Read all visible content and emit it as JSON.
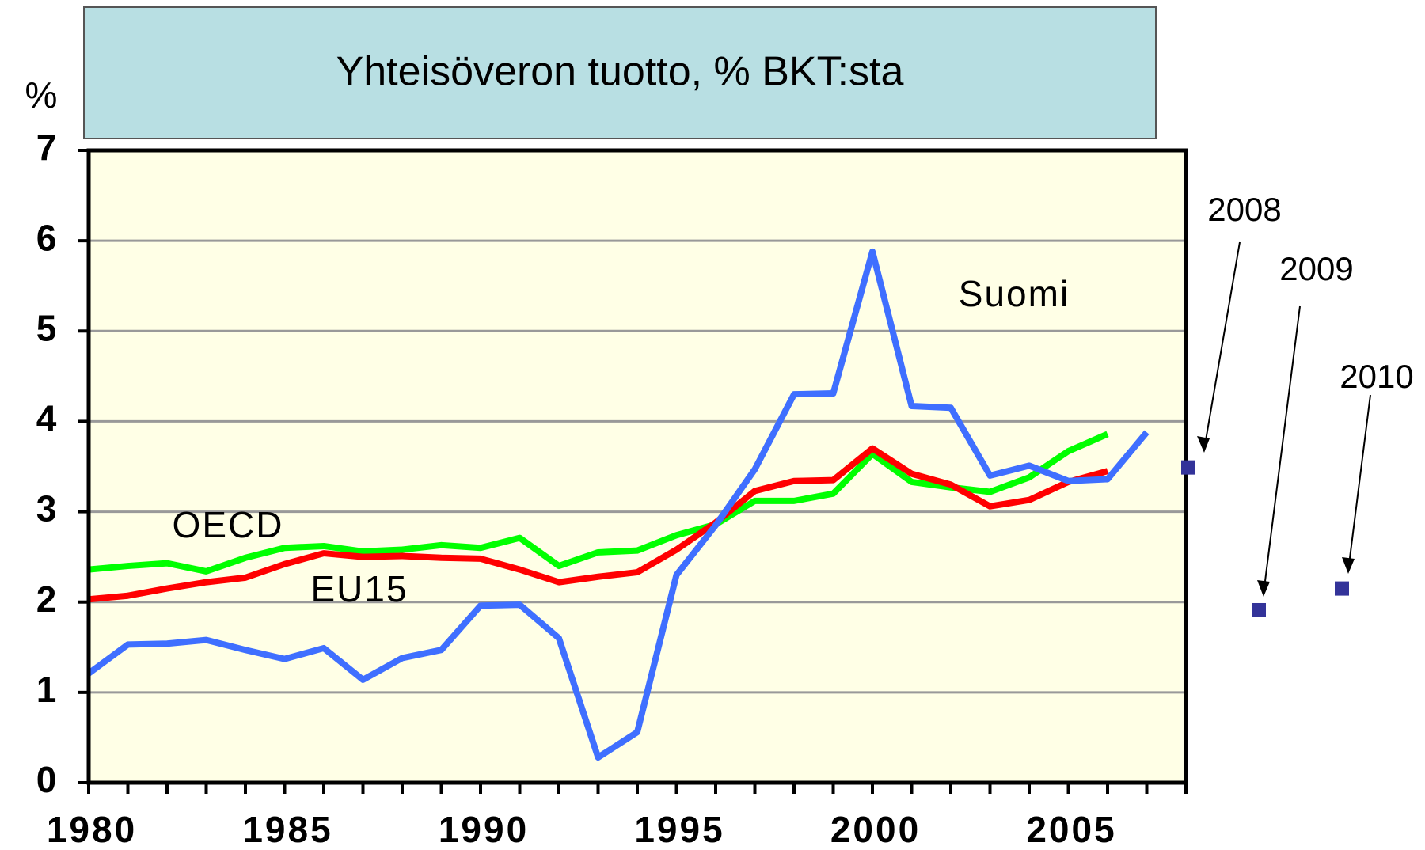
{
  "chart_data": {
    "type": "line",
    "title": "Yhteisöveron tuotto, % BKT:sta",
    "ylabel": "%",
    "x": [
      1980,
      1981,
      1982,
      1983,
      1984,
      1985,
      1986,
      1987,
      1988,
      1989,
      1990,
      1991,
      1992,
      1993,
      1994,
      1995,
      1996,
      1997,
      1998,
      1999,
      2000,
      2001,
      2002,
      2003,
      2004,
      2005,
      2006,
      2007
    ],
    "series": [
      {
        "name": "OECD",
        "color": "#00ff00",
        "values": [
          2.36,
          2.4,
          2.43,
          2.34,
          2.49,
          2.6,
          2.62,
          2.56,
          2.58,
          2.63,
          2.6,
          2.71,
          2.4,
          2.55,
          2.57,
          2.74,
          2.86,
          3.12,
          3.12,
          3.2,
          3.64,
          3.33,
          3.27,
          3.22,
          3.38,
          3.67,
          3.86,
          null
        ]
      },
      {
        "name": "EU15",
        "color": "#ff0000",
        "values": [
          2.03,
          2.07,
          2.15,
          2.22,
          2.27,
          2.42,
          2.54,
          2.5,
          2.51,
          2.49,
          2.48,
          2.36,
          2.22,
          2.28,
          2.33,
          2.58,
          2.88,
          3.23,
          3.34,
          3.35,
          3.7,
          3.42,
          3.3,
          3.06,
          3.13,
          3.33,
          3.45,
          null
        ]
      },
      {
        "name": "Suomi",
        "color": "#3f6fff",
        "values": [
          1.21,
          1.53,
          1.54,
          1.58,
          1.47,
          1.37,
          1.49,
          1.14,
          1.38,
          1.47,
          1.96,
          1.97,
          1.6,
          0.28,
          0.56,
          2.3,
          2.85,
          3.47,
          4.3,
          4.31,
          5.88,
          4.17,
          4.15,
          3.4,
          3.51,
          3.34,
          3.36,
          3.88
        ]
      }
    ],
    "points": {
      "color": "#333399",
      "labels": [
        "2008",
        "2009",
        "2010"
      ],
      "values": [
        3.49,
        1.91,
        2.15
      ]
    },
    "xlim": [
      1980,
      2008
    ],
    "xticks": [
      1980,
      1985,
      1990,
      1995,
      2000,
      2005
    ],
    "xminor": [
      1980,
      1981,
      1982,
      1983,
      1984,
      1985,
      1986,
      1987,
      1988,
      1989,
      1990,
      1991,
      1992,
      1993,
      1994,
      1995,
      1996,
      1997,
      1998,
      1999,
      2000,
      2001,
      2002,
      2003,
      2004,
      2005,
      2006,
      2007,
      2008
    ],
    "ylim": [
      0,
      7
    ],
    "yticks": [
      0,
      1,
      2,
      3,
      4,
      5,
      6,
      7
    ],
    "grid": true
  }
}
